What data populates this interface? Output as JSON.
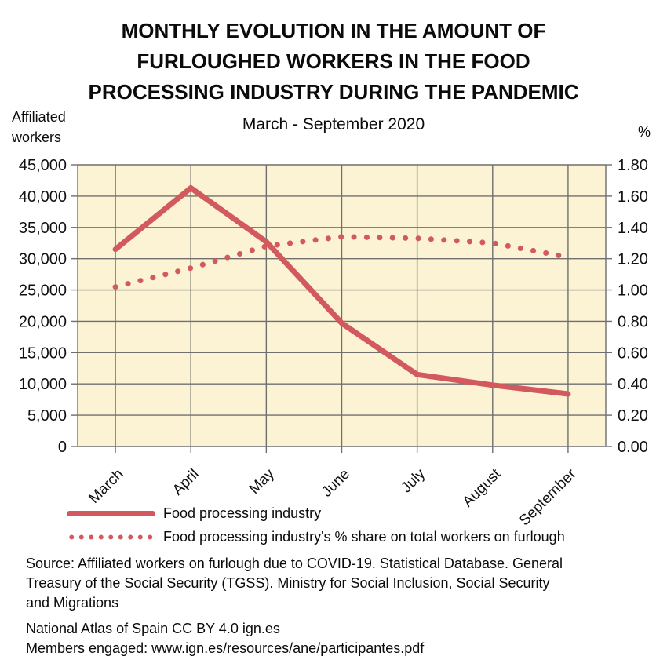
{
  "header": {
    "title_lines": [
      "MONTHLY EVOLUTION IN THE AMOUNT OF",
      "FURLOUGHED WORKERS IN THE FOOD",
      "PROCESSING INDUSTRY DURING THE PANDEMIC"
    ],
    "subtitle": "March - September 2020",
    "left_axis_unit_lines": [
      "Affiliated",
      "workers"
    ],
    "right_axis_unit": "%"
  },
  "chart_data": {
    "type": "line",
    "title": "Monthly evolution in the amount of furloughed workers in the food processing industry during the pandemic",
    "subtitle": "March - September 2020",
    "categories": [
      "March",
      "April",
      "May",
      "June",
      "July",
      "August",
      "September"
    ],
    "series": [
      {
        "name": "Food processing industry",
        "axis": "left",
        "style": "solid",
        "color": "#D25A5E",
        "values": [
          31500,
          41300,
          32700,
          19700,
          11500,
          9800,
          8400
        ]
      },
      {
        "name": "Food processing industry's % share on total workers on furlough",
        "axis": "right",
        "style": "dotted",
        "color": "#D25A5E",
        "values": [
          1.02,
          1.14,
          1.28,
          1.34,
          1.33,
          1.3,
          1.21
        ]
      }
    ],
    "left_axis": {
      "label": "Affiliated workers",
      "min": 0,
      "max": 45000,
      "step": 5000
    },
    "right_axis": {
      "label": "%",
      "min": 0,
      "max": 1.8,
      "step": 0.2
    },
    "grid": true,
    "plot_background": "#FBF3D3",
    "grid_color": "#6F6F6F",
    "legend_position": "bottom-left"
  },
  "legend": {
    "items": [
      {
        "label": "Food processing industry",
        "style": "solid"
      },
      {
        "label": "Food processing industry's % share on total workers on furlough",
        "style": "dotted"
      }
    ]
  },
  "footer": {
    "source": "Source: Affiliated workers on furlough due to COVID-19. Statistical Database. General Treasury of the Social Security (TGSS). Ministry for Social Inclusion, Social Security and Migrations",
    "attribution_line1": "National Atlas of Spain CC BY 4.0 ign.es",
    "attribution_line2": "Members engaged: www.ign.es/resources/ane/participantes.pdf"
  }
}
